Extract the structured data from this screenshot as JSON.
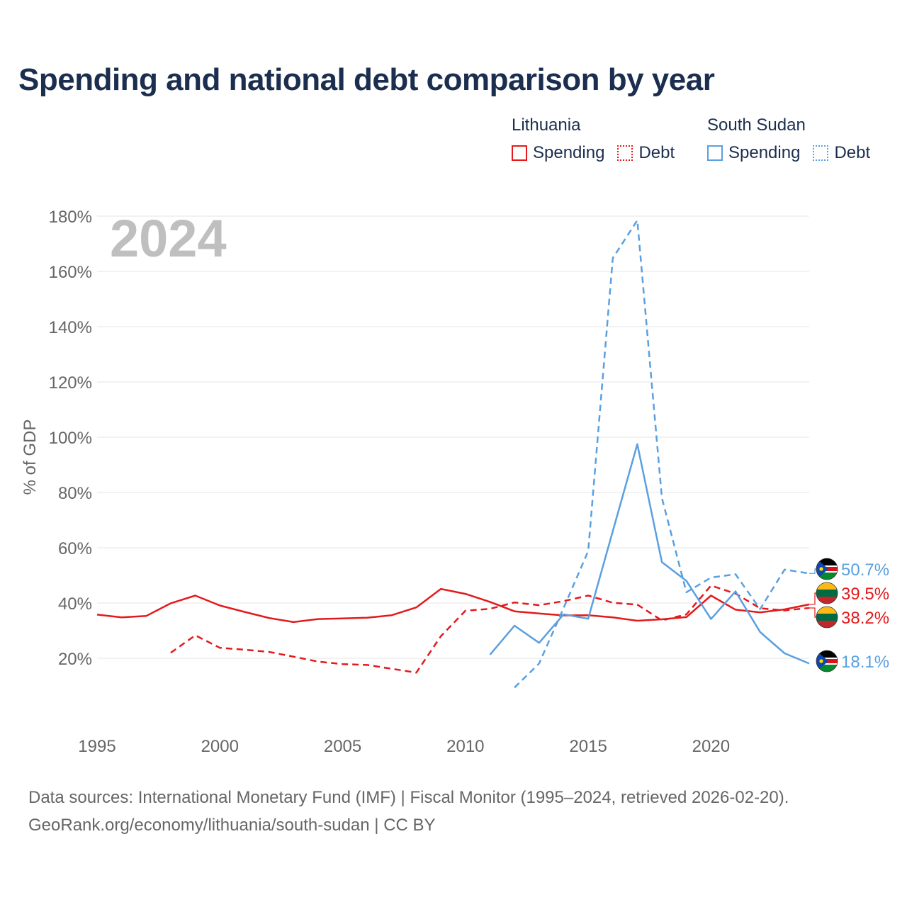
{
  "title": "Spending and national debt comparison by year",
  "legend": {
    "lithuania": {
      "name": "Lithuania",
      "spending": "Spending",
      "debt": "Debt"
    },
    "south_sudan": {
      "name": "South Sudan",
      "spending": "Spending",
      "debt": "Debt"
    }
  },
  "colors": {
    "lithuania": "#e31a1c",
    "south_sudan": "#5aa0e0",
    "grid": "#e6e6e6",
    "axis_text": "#666666",
    "year_watermark": "#bfbfbf"
  },
  "chart_data": {
    "type": "line",
    "ylabel": "% of GDP",
    "xlabel": "",
    "current_year": "2024",
    "xlim": [
      1995,
      2024
    ],
    "ylim": [
      0,
      180
    ],
    "x_ticks": [
      1995,
      2000,
      2005,
      2010,
      2015,
      2020
    ],
    "y_ticks": [
      20,
      40,
      60,
      80,
      100,
      120,
      140,
      160,
      180
    ],
    "y_tick_labels": [
      "20%",
      "40%",
      "60%",
      "80%",
      "100%",
      "120%",
      "140%",
      "160%",
      "180%"
    ],
    "series": [
      {
        "name": "Lithuania Spending",
        "country": "lithuania",
        "style": "solid",
        "x": [
          1995,
          1996,
          1997,
          1998,
          1999,
          2000,
          2001,
          2002,
          2003,
          2004,
          2005,
          2006,
          2007,
          2008,
          2009,
          2010,
          2011,
          2012,
          2013,
          2014,
          2015,
          2016,
          2017,
          2018,
          2019,
          2020,
          2021,
          2022,
          2023,
          2024
        ],
        "values": [
          35.8,
          34.8,
          35.3,
          39.9,
          42.7,
          39.1,
          36.8,
          34.6,
          33.1,
          34.2,
          34.4,
          34.7,
          35.6,
          38.4,
          45.1,
          43.3,
          40.4,
          37,
          36.2,
          35.5,
          35.6,
          34.8,
          33.6,
          34.1,
          34.9,
          42.7,
          37.6,
          36.6,
          37.7,
          39.5
        ]
      },
      {
        "name": "Lithuania Debt",
        "country": "lithuania",
        "style": "dashed",
        "x": [
          1998,
          1999,
          2000,
          2001,
          2002,
          2003,
          2004,
          2005,
          2006,
          2007,
          2008,
          2009,
          2010,
          2011,
          2012,
          2013,
          2014,
          2015,
          2016,
          2017,
          2018,
          2019,
          2020,
          2021,
          2022,
          2023,
          2024
        ],
        "values": [
          22,
          28.3,
          23.8,
          23.1,
          22.3,
          20.6,
          18.8,
          17.9,
          17.6,
          16.2,
          14.8,
          28,
          37.2,
          37.9,
          40.2,
          39.2,
          40.7,
          42.7,
          40.1,
          39.4,
          33.7,
          35.9,
          46.3,
          43.4,
          38.1,
          37.3,
          38.2
        ]
      },
      {
        "name": "South Sudan Spending",
        "country": "south_sudan",
        "style": "solid",
        "x": [
          2011,
          2012,
          2013,
          2014,
          2015,
          2016,
          2017,
          2018,
          2019,
          2020,
          2021,
          2022,
          2023,
          2024
        ],
        "values": [
          21.3,
          31.8,
          25.6,
          35.9,
          34.3,
          66,
          97.5,
          54.8,
          48,
          34.2,
          44.2,
          29.5,
          21.8,
          18.1
        ]
      },
      {
        "name": "South Sudan Debt",
        "country": "south_sudan",
        "style": "dashed",
        "x": [
          2012,
          2013,
          2014,
          2015,
          2016,
          2017,
          2018,
          2019,
          2020,
          2021,
          2022,
          2023,
          2024
        ],
        "values": [
          9.4,
          18.1,
          38.2,
          58.8,
          164.8,
          178.5,
          78,
          43.9,
          49.2,
          50.4,
          37.8,
          52.1,
          50.7
        ]
      }
    ],
    "end_labels": [
      {
        "text": "50.7%",
        "country": "south_sudan",
        "value": 50.7
      },
      {
        "text": "39.5%",
        "country": "lithuania",
        "value": 39.5
      },
      {
        "text": "38.2%",
        "country": "lithuania",
        "value": 38.2
      },
      {
        "text": "18.1%",
        "country": "south_sudan",
        "value": 18.1
      }
    ]
  },
  "footer": {
    "line1": "Data sources: International Monetary Fund (IMF) | Fiscal Monitor (1995–2024, retrieved 2026-02-20).",
    "line2": "GeoRank.org/economy/lithuania/south-sudan | CC BY"
  }
}
